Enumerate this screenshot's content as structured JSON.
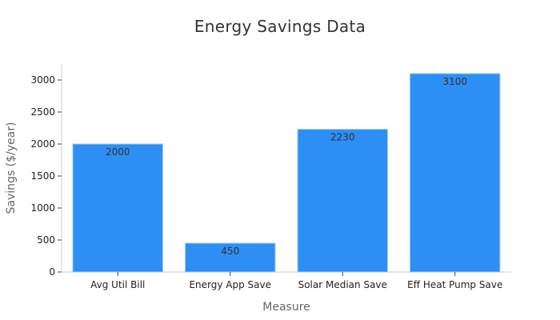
{
  "chart_data": {
    "type": "bar",
    "title": "Energy Savings Data",
    "xlabel": "Measure",
    "ylabel": "Savings ($/year)",
    "categories": [
      "Avg Util Bill",
      "Energy App Save",
      "Solar Median Save",
      "Eff Heat Pump Save"
    ],
    "values": [
      2000,
      450,
      2230,
      3100
    ],
    "data_labels": [
      "2000",
      "450",
      "2230",
      "3100"
    ],
    "ylim": [
      0,
      3250
    ],
    "yticks": [
      0,
      500,
      1000,
      1500,
      2000,
      2500,
      3000
    ],
    "ytick_labels": [
      "0",
      "500",
      "1000",
      "1500",
      "2000",
      "2500",
      "3000"
    ],
    "bar_color": "#2d8ef4",
    "bar_edge_color": "#9cc8f7",
    "grid": false,
    "legend": "none"
  }
}
